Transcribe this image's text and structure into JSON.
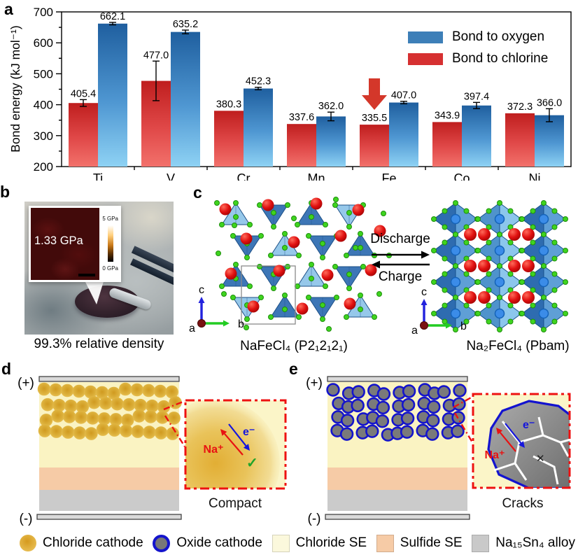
{
  "panels": {
    "a": {
      "label": "a"
    },
    "b": {
      "label": "b",
      "inset_value": "1.33 GPa",
      "colorbar_max": "5 GPa",
      "colorbar_min": "0 GPa",
      "caption": "99.3% relative density"
    },
    "c": {
      "label": "c",
      "left_formula": "NaFeCl₄ (P2₁2₁2₁)",
      "right_formula": "Na₂FeCl₄ (Pbam)",
      "arrow_forward": "Discharge",
      "arrow_backward": "Charge",
      "axis_up": "c",
      "axis_right": "b",
      "axis_origin": "a"
    },
    "d": {
      "label": "d",
      "electrode_positive": "(+)",
      "electrode_negative": "(-)",
      "ion_label": "Na⁺",
      "electron_label": "e⁻",
      "ok_mark": "✓",
      "caption": "Compact"
    },
    "e": {
      "label": "e",
      "electrode_positive": "(+)",
      "electrode_negative": "(-)",
      "ion_label": "Na⁺",
      "electron_label": "e⁻",
      "fail_mark": "✕",
      "caption": "Cracks"
    }
  },
  "chart_data": {
    "type": "bar",
    "title": "",
    "xlabel": "",
    "ylabel": "Bond energy (kJ mol⁻¹)",
    "ylim": [
      200,
      700
    ],
    "ytick_major": 100,
    "ytick_minor": 50,
    "grid": false,
    "categories": [
      "Ti",
      "V",
      "Cr",
      "Mn",
      "Fe",
      "Co",
      "Ni"
    ],
    "series": [
      {
        "name": "Bond to chlorine",
        "color": "#d63031",
        "values": [
          405.4,
          477.0,
          380.3,
          337.6,
          335.5,
          343.9,
          372.3
        ],
        "value_labels": [
          "405.4",
          "477.0",
          "380.3",
          "337.6",
          "335.5",
          "343.9",
          "372.3"
        ],
        "errors": [
          11,
          64,
          0,
          0,
          0,
          0,
          0
        ]
      },
      {
        "name": "Bond to oxygen",
        "color": "#3d7fb8",
        "values": [
          662.1,
          635.2,
          452.3,
          362.0,
          407.0,
          397.4,
          366.0
        ],
        "value_labels": [
          "662.1",
          "635.2",
          "452.3",
          "362.0",
          "407.0",
          "397.4",
          "366.0"
        ],
        "errors": [
          4,
          6,
          4,
          14,
          4,
          10,
          21
        ]
      }
    ],
    "legend": {
      "position": "top-right",
      "entries": [
        {
          "label": "Bond to oxygen",
          "color": "#3d7fb8"
        },
        {
          "label": "Bond to chlorine",
          "color": "#d63031"
        }
      ]
    },
    "annotation": {
      "type": "down-arrow",
      "target_category": "Fe",
      "target_series": "Bond to chlorine",
      "color": "#d4372a"
    }
  },
  "footer_legend": {
    "items": [
      {
        "icon": "chloride-cathode-swatch",
        "label": "Chloride cathode"
      },
      {
        "icon": "oxide-cathode-swatch",
        "label": "Oxide cathode"
      },
      {
        "icon": "chloride-se-swatch",
        "label": "Chloride SE"
      },
      {
        "icon": "sulfide-se-swatch",
        "label": "Sulfide SE"
      },
      {
        "icon": "na15sn4-swatch",
        "label": "Na₁₅Sn₄ alloy"
      }
    ]
  },
  "palette": {
    "bar_red_top": "#bf1e1e",
    "bar_red_bottom": "#f2716b",
    "bar_blue_top": "#1f5f9f",
    "bar_blue_bottom": "#8ed2f4",
    "chloride_se": "#faf3c2",
    "sulfide_se": "#f6cba6",
    "alloy_grey": "#cbcbcb",
    "electrode_grey": "#d9d9d9",
    "gold_particle": "#dda52f",
    "oxide_particle_fill": "#7a7a7a",
    "oxide_particle_ring": "#1414cc",
    "crystal_blue_dark": "#2e6cb0",
    "crystal_blue_light": "#8ec4e8",
    "na_red": "#dd1111",
    "cl_green": "#3fd41f",
    "inset_border_red": "#ee1111"
  }
}
